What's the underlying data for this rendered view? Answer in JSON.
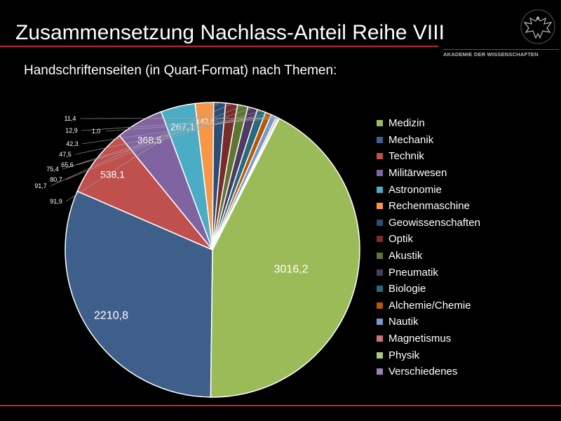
{
  "header": {
    "title": "Zusammensetzung Nachlass-Anteil Reihe VIII",
    "subtitle": "Handschriftenseiten (in Quart-Format) nach Themen:"
  },
  "logo": {
    "text": "AKADEMIE DER WISSENSCHAFTEN",
    "icon": "eagle-icon"
  },
  "colors": {
    "background": "#000000",
    "accent_rule": "#c0282d"
  },
  "chart_data": {
    "type": "pie",
    "title": "Handschriftenseiten (in Quart-Format) nach Themen:",
    "legend_position": "right",
    "series": [
      {
        "name": "Medizin",
        "value": 3016.2,
        "label": "3016,2",
        "color": "#9bbb59"
      },
      {
        "name": "Mechanik",
        "value": 2210.8,
        "label": "2210,8",
        "color": "#3e5f8a"
      },
      {
        "name": "Technik",
        "value": 538.1,
        "label": "538,1",
        "color": "#c0504d"
      },
      {
        "name": "Militärwesen",
        "value": 368.5,
        "label": "368,5",
        "color": "#8064a2"
      },
      {
        "name": "Astronomie",
        "value": 267.1,
        "label": "267,1",
        "color": "#4bacc6"
      },
      {
        "name": "Rechenmaschine",
        "value": 142.6,
        "label": "142,6",
        "color": "#f79646"
      },
      {
        "name": "Geowissenschaften",
        "value": 91.9,
        "label": "91,9",
        "color": "#2c4d75"
      },
      {
        "name": "Optik",
        "value": 91.7,
        "label": "91,7",
        "color": "#772c2a"
      },
      {
        "name": "Akustik",
        "value": 80.7,
        "label": "80,7",
        "color": "#5f7530"
      },
      {
        "name": "Pneumatik",
        "value": 75.4,
        "label": "75,4",
        "color": "#4d3b62"
      },
      {
        "name": "Biologie",
        "value": 65.6,
        "label": "65,6",
        "color": "#276a7c"
      },
      {
        "name": "Alchemie/Chemie",
        "value": 47.5,
        "label": "47,5",
        "color": "#b65708"
      },
      {
        "name": "Nautik",
        "value": 42.3,
        "label": "42,3",
        "color": "#729aca"
      },
      {
        "name": "Magnetismus",
        "value": 12.9,
        "label": "12,9",
        "color": "#cd7371"
      },
      {
        "name": "Physik",
        "value": 11.4,
        "label": "11,4",
        "color": "#afc97a"
      },
      {
        "name": "Verschiedenes",
        "value": 1.0,
        "label": "1,0",
        "color": "#9983b5"
      }
    ]
  }
}
